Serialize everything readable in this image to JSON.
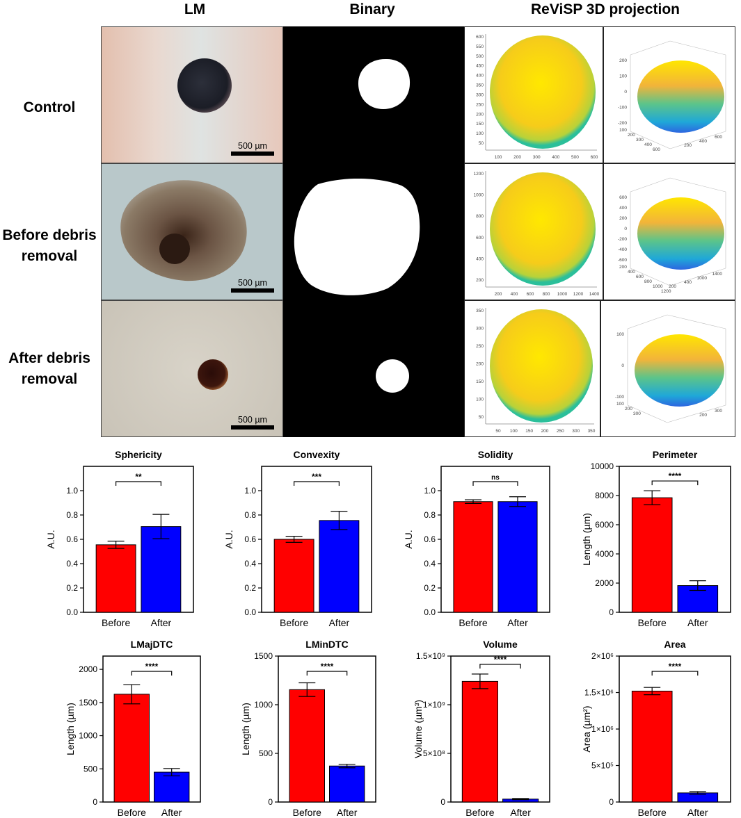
{
  "columns": {
    "lm": "LM",
    "binary": "Binary",
    "projection": "ReViSP 3D projection"
  },
  "rows": [
    {
      "label_lines": [
        "Control"
      ],
      "scale": "500 µm",
      "plot2d_xticks": [
        "100",
        "200",
        "300",
        "400",
        "500",
        "600"
      ],
      "plot2d_yticks": [
        "50",
        "100",
        "150",
        "200",
        "250",
        "300",
        "350",
        "400",
        "450",
        "500",
        "550",
        "600"
      ],
      "plot3d_zticks": [
        "200",
        "100",
        "0",
        "-100",
        "-200"
      ],
      "plot3d_xticks": [
        "600",
        "400",
        "200"
      ],
      "plot3d_yticks": [
        "100",
        "200",
        "300",
        "400",
        "600"
      ]
    },
    {
      "label_lines": [
        "Before debris",
        "removal"
      ],
      "scale": "500 µm",
      "plot2d_xticks": [
        "200",
        "400",
        "600",
        "800",
        "1000",
        "1200",
        "1400"
      ],
      "plot2d_yticks": [
        "200",
        "400",
        "600",
        "800",
        "1000",
        "1200"
      ],
      "plot3d_zticks": [
        "600",
        "400",
        "200",
        "0",
        "-200",
        "-400",
        "-600"
      ],
      "plot3d_xticks": [
        "1400",
        "1000",
        "400",
        "200"
      ],
      "plot3d_yticks": [
        "200",
        "400",
        "600",
        "800",
        "1000",
        "1200"
      ]
    },
    {
      "label_lines": [
        "After debris",
        "removal"
      ],
      "scale": "500 µm",
      "plot2d_xticks": [
        "50",
        "100",
        "150",
        "200",
        "250",
        "300",
        "350"
      ],
      "plot2d_yticks": [
        "50",
        "100",
        "150",
        "200",
        "250",
        "300",
        "350"
      ],
      "plot3d_zticks": [
        "100",
        "0",
        "-100"
      ],
      "plot3d_xticks": [
        "300",
        "200"
      ],
      "plot3d_yticks": [
        "100",
        "200",
        "300"
      ]
    }
  ],
  "colors": {
    "before": "#ff0000",
    "after": "#0000ff"
  },
  "chart_data": [
    {
      "type": "bar",
      "title": "Sphericity",
      "ylabel": "A.U.",
      "categories": [
        "Before",
        "After"
      ],
      "values": [
        0.555,
        0.705
      ],
      "errors": [
        0.03,
        0.1
      ],
      "ylim": [
        0,
        1.2
      ],
      "yticks": [
        "0.0",
        "0.2",
        "0.4",
        "0.6",
        "0.8",
        "1.0"
      ],
      "yticks_vals": [
        0,
        0.2,
        0.4,
        0.6,
        0.8,
        1.0
      ],
      "significance": "**"
    },
    {
      "type": "bar",
      "title": "Convexity",
      "ylabel": "A.U.",
      "categories": [
        "Before",
        "After"
      ],
      "values": [
        0.6,
        0.755
      ],
      "errors": [
        0.025,
        0.075
      ],
      "ylim": [
        0,
        1.2
      ],
      "yticks": [
        "0.0",
        "0.2",
        "0.4",
        "0.6",
        "0.8",
        "1.0"
      ],
      "yticks_vals": [
        0,
        0.2,
        0.4,
        0.6,
        0.8,
        1.0
      ],
      "significance": "***"
    },
    {
      "type": "bar",
      "title": "Solidity",
      "ylabel": "A.U.",
      "categories": [
        "Before",
        "After"
      ],
      "values": [
        0.91,
        0.91
      ],
      "errors": [
        0.015,
        0.04
      ],
      "ylim": [
        0,
        1.2
      ],
      "yticks": [
        "0.0",
        "0.2",
        "0.4",
        "0.6",
        "0.8",
        "1.0"
      ],
      "yticks_vals": [
        0,
        0.2,
        0.4,
        0.6,
        0.8,
        1.0
      ],
      "significance": "ns"
    },
    {
      "type": "bar",
      "title": "Perimeter",
      "ylabel": "Length (µm)",
      "categories": [
        "Before",
        "After"
      ],
      "values": [
        7850,
        1830
      ],
      "errors": [
        480,
        330
      ],
      "ylim": [
        0,
        10000
      ],
      "yticks": [
        "0",
        "2000",
        "4000",
        "6000",
        "8000",
        "10000"
      ],
      "yticks_vals": [
        0,
        2000,
        4000,
        6000,
        8000,
        10000
      ],
      "significance": "****"
    },
    {
      "type": "bar",
      "title": "LMajDTC",
      "ylabel": "Length (µm)",
      "categories": [
        "Before",
        "After"
      ],
      "values": [
        1625,
        450
      ],
      "errors": [
        145,
        55
      ],
      "ylim": [
        0,
        2200
      ],
      "yticks": [
        "0",
        "500",
        "1000",
        "1500",
        "2000"
      ],
      "yticks_vals": [
        0,
        500,
        1000,
        1500,
        2000
      ],
      "significance": "****"
    },
    {
      "type": "bar",
      "title": "LMinDTC",
      "ylabel": "Length (µm)",
      "categories": [
        "Before",
        "After"
      ],
      "values": [
        1155,
        370
      ],
      "errors": [
        70,
        18
      ],
      "ylim": [
        0,
        1500
      ],
      "yticks": [
        "0",
        "500",
        "1000",
        "1500"
      ],
      "yticks_vals": [
        0,
        500,
        1000,
        1500
      ],
      "significance": "****"
    },
    {
      "type": "bar",
      "title": "Volume",
      "ylabel": "Volume (µm³)",
      "categories": [
        "Before",
        "After"
      ],
      "values": [
        1240000000,
        30000000
      ],
      "errors": [
        75000000,
        6000000
      ],
      "ylim": [
        0,
        1500000000
      ],
      "yticks": [
        "0",
        "5×10⁸",
        "1×10⁹",
        "1.5×10⁹"
      ],
      "yticks_vals": [
        0,
        500000000,
        1000000000,
        1500000000
      ],
      "significance": "****"
    },
    {
      "type": "bar",
      "title": "Area",
      "ylabel": "Area (µm²)",
      "categories": [
        "Before",
        "After"
      ],
      "values": [
        1520000,
        125000
      ],
      "errors": [
        50000,
        18000
      ],
      "ylim": [
        0,
        2000000
      ],
      "yticks": [
        "0",
        "5×10⁵",
        "1×10⁶",
        "1.5×10⁶",
        "2×10⁶"
      ],
      "yticks_vals": [
        0,
        500000,
        1000000,
        1500000,
        2000000
      ],
      "significance": "****"
    }
  ]
}
